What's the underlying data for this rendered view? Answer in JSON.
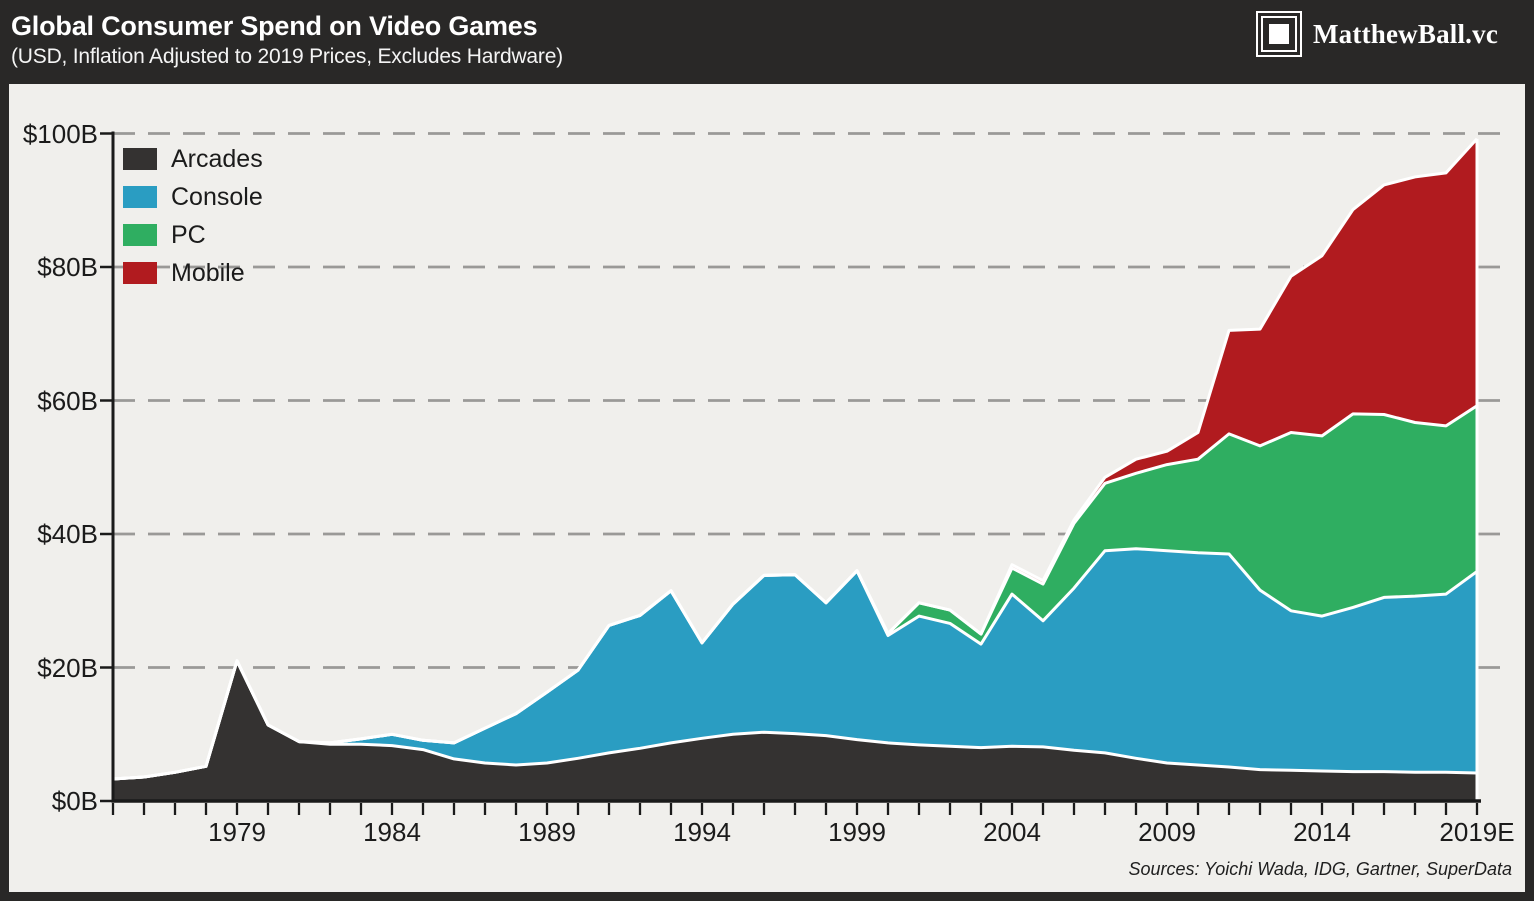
{
  "header": {
    "title": "Global Consumer Spend on Video Games",
    "subtitle": "(USD, Inflation Adjusted to 2019 Prices, Excludes Hardware)",
    "logo_text": "MatthewBall.vc"
  },
  "footer": {
    "sources": "Sources: Yoichi Wada, IDG, Gartner, SuperData"
  },
  "colors": {
    "background": "#292827",
    "panel": "#f0efec",
    "gridline": "#9a9997",
    "axis": "#1a1a1a",
    "separator": "#ffffff",
    "arcades": "#343231",
    "console": "#2a9dc2",
    "pc": "#2fae61",
    "mobile": "#b11b1f"
  },
  "chart_data": {
    "type": "area",
    "stacked": true,
    "title": "Global Consumer Spend on Video Games",
    "subtitle": "(USD, Inflation Adjusted to 2019 Prices, Excludes Hardware)",
    "unit": "$B",
    "x_range": [
      1975,
      2019
    ],
    "ylim": [
      0,
      100
    ],
    "grid": "horizontal-dashed",
    "legend_position": "top-left",
    "x": [
      1975,
      1976,
      1977,
      1978,
      1979,
      1980,
      1981,
      1982,
      1983,
      1984,
      1985,
      1986,
      1987,
      1988,
      1989,
      1990,
      1991,
      1992,
      1993,
      1994,
      1995,
      1996,
      1997,
      1998,
      1999,
      2000,
      2001,
      2002,
      2003,
      2004,
      2005,
      2006,
      2007,
      2008,
      2009,
      2010,
      2011,
      2012,
      2013,
      2014,
      2015,
      2016,
      2017,
      2018,
      2019
    ],
    "series": [
      {
        "name": "Arcades",
        "color": "#343231",
        "values": [
          3.3,
          3.6,
          4.3,
          5.2,
          21.0,
          11.4,
          8.9,
          8.5,
          8.5,
          8.3,
          7.7,
          6.3,
          5.7,
          5.4,
          5.7,
          6.4,
          7.2,
          7.9,
          8.7,
          9.4,
          10.0,
          10.3,
          10.1,
          9.8,
          9.2,
          8.7,
          8.4,
          8.2,
          8.0,
          8.2,
          8.1,
          7.6,
          7.2,
          6.4,
          5.7,
          5.4,
          5.1,
          4.7,
          4.6,
          4.5,
          4.4,
          4.4,
          4.3,
          4.3,
          4.2
        ]
      },
      {
        "name": "Console",
        "color": "#2a9dc2",
        "values": [
          0,
          0,
          0,
          0,
          0,
          0,
          0,
          0.2,
          0.8,
          1.7,
          1.4,
          2.4,
          5.2,
          7.7,
          10.6,
          13.2,
          19.1,
          19.9,
          22.8,
          14.3,
          19.5,
          23.5,
          23.8,
          19.9,
          25.3,
          16.1,
          19.3,
          18.4,
          15.5,
          22.8,
          18.9,
          24.3,
          30.3,
          31.4,
          31.8,
          31.8,
          31.9,
          26.9,
          23.9,
          23.2,
          24.6,
          26.1,
          26.4,
          26.7,
          30.2
        ]
      },
      {
        "name": "PC",
        "color": "#2fae61",
        "values": [
          0,
          0,
          0,
          0,
          0,
          0,
          0,
          0,
          0,
          0,
          0,
          0,
          0,
          0,
          0,
          0,
          0,
          0,
          0,
          0,
          0,
          0,
          0,
          0,
          0,
          0.3,
          2.0,
          2.0,
          1.5,
          3.9,
          5.5,
          9.7,
          10.1,
          11.3,
          12.9,
          14.0,
          18.0,
          21.6,
          26.7,
          27.0,
          29.0,
          27.4,
          26.0,
          25.2,
          24.8
        ]
      },
      {
        "name": "Mobile",
        "color": "#b11b1f",
        "values": [
          0,
          0,
          0,
          0,
          0,
          0,
          0,
          0,
          0,
          0,
          0,
          0,
          0,
          0,
          0,
          0,
          0,
          0,
          0,
          0,
          0,
          0,
          0,
          0,
          0,
          0,
          0,
          0,
          0,
          0.5,
          0.5,
          0.5,
          0.9,
          2.1,
          2.0,
          4.0,
          15.5,
          17.5,
          23.4,
          27.0,
          30.6,
          34.4,
          36.8,
          37.9,
          40.0
        ]
      }
    ],
    "y_axis": {
      "tick_values": [
        0,
        20,
        40,
        60,
        80,
        100
      ],
      "tick_labels": [
        "$0B",
        "$20B",
        "$40B",
        "$60B",
        "$80B",
        "$100B"
      ]
    },
    "x_axis": {
      "label_years": [
        1979,
        1984,
        1989,
        1994,
        1999,
        2004,
        2009,
        2014,
        2019
      ],
      "labels": [
        "1979",
        "1984",
        "1989",
        "1994",
        "1999",
        "2004",
        "2009",
        "2014",
        "2019E"
      ]
    },
    "legend": [
      "Arcades",
      "Console",
      "PC",
      "Mobile"
    ]
  }
}
